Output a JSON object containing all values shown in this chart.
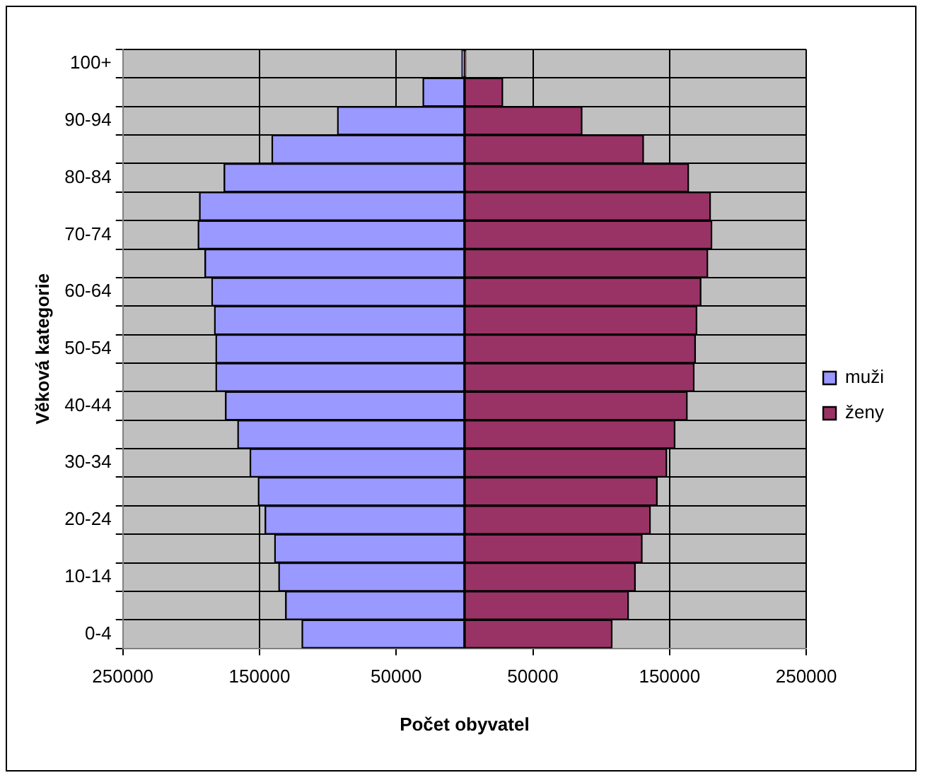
{
  "chart_data": {
    "type": "bar",
    "orientation": "horizontal",
    "stacked": true,
    "xlabel": "Počet obyvatel",
    "ylabel": "Věková kategorie",
    "categories": [
      "100+",
      null,
      "90-94",
      null,
      "80-84",
      null,
      "70-74",
      null,
      "60-64",
      null,
      "50-54",
      null,
      "40-44",
      null,
      "30-34",
      null,
      "20-24",
      null,
      "10-14",
      null,
      "0-4"
    ],
    "series": [
      {
        "name": "muži",
        "color": "#9999ff",
        "values": [
          -2000,
          -30500,
          -93000,
          -141000,
          -176000,
          -194000,
          -195000,
          -190000,
          -185000,
          -183000,
          -182000,
          -182000,
          -175000,
          -166000,
          -157000,
          -151000,
          -146000,
          -139000,
          -136000,
          -131000,
          -119000
        ]
      },
      {
        "name": "ženy",
        "color": "#993366",
        "values": [
          1000,
          28000,
          86000,
          131000,
          164000,
          180000,
          181000,
          178000,
          173000,
          170000,
          169000,
          168000,
          163000,
          154000,
          148000,
          141000,
          136000,
          130000,
          125000,
          120000,
          108000
        ]
      }
    ],
    "xlim": [
      -250000,
      250000
    ],
    "xticks": [
      {
        "value": -250000,
        "label": "250000"
      },
      {
        "value": -150000,
        "label": "150000"
      },
      {
        "value": -50000,
        "label": "50000"
      },
      {
        "value": 50000,
        "label": "50000"
      },
      {
        "value": 150000,
        "label": "150000"
      },
      {
        "value": 250000,
        "label": "250000"
      }
    ],
    "grid": true,
    "legend": "right"
  }
}
